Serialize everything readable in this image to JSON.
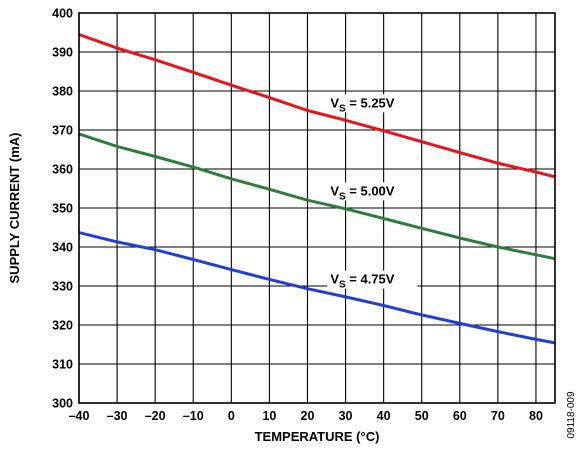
{
  "chart_data": {
    "type": "line",
    "title": "",
    "xlabel": "TEMPERATURE (°C)",
    "ylabel": "SUPPLY CURRENT (mA)",
    "xlim": [
      -40,
      85
    ],
    "ylim": [
      300,
      400
    ],
    "xticks": [
      "–40",
      "–30",
      "–20",
      "–10",
      "0",
      "10",
      "20",
      "30",
      "40",
      "50",
      "60",
      "70",
      "80"
    ],
    "yticks": [
      "300",
      "310",
      "320",
      "330",
      "340",
      "350",
      "360",
      "370",
      "380",
      "390",
      "400"
    ],
    "grid": true,
    "series": [
      {
        "name": "VS = 5.25V",
        "label_main": "V",
        "label_sub": "S",
        "label_rest": " = 5.25V",
        "color": "#e8141b",
        "x": [
          -40,
          -30,
          -20,
          -10,
          0,
          10,
          20,
          30,
          40,
          50,
          60,
          70,
          80,
          85
        ],
        "y": [
          394.5,
          391,
          388,
          384.8,
          381.5,
          378.3,
          375,
          372.5,
          369.8,
          367,
          364.2,
          361.5,
          359.2,
          358
        ]
      },
      {
        "name": "VS = 5.00V",
        "label_main": "V",
        "label_sub": "S",
        "label_rest": " = 5.00V",
        "color": "#2e7d3f",
        "x": [
          -40,
          -30,
          -20,
          -10,
          0,
          10,
          20,
          30,
          40,
          50,
          60,
          70,
          80,
          85
        ],
        "y": [
          369,
          365.8,
          363.2,
          360.5,
          357.5,
          354.8,
          352,
          349.8,
          347.3,
          344.8,
          342.3,
          340,
          338,
          337
        ]
      },
      {
        "name": "VS = 4.75V",
        "label_main": "V",
        "label_sub": "S",
        "label_rest": " = 4.75V",
        "color": "#1f3fd8",
        "x": [
          -40,
          -30,
          -20,
          -10,
          0,
          10,
          20,
          30,
          40,
          50,
          60,
          70,
          80,
          85
        ],
        "y": [
          343.7,
          341.3,
          339.3,
          336.8,
          334.2,
          331.7,
          329.3,
          327.2,
          325,
          322.6,
          320.4,
          318.3,
          316.3,
          315.4
        ]
      }
    ]
  },
  "figure_id": "09118-009"
}
